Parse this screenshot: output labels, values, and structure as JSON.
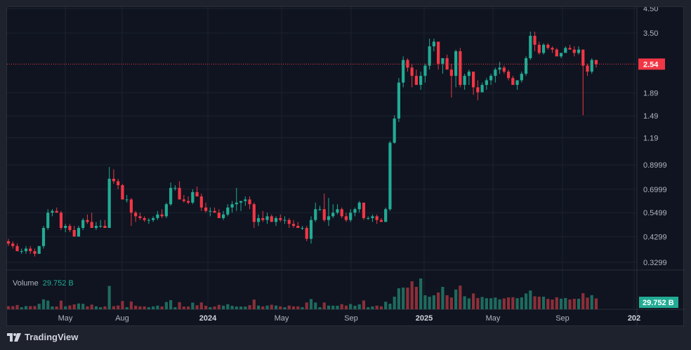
{
  "chart_data": {
    "type": "candlestick",
    "title": "",
    "interval": "weekly",
    "scale": "log",
    "y_ticks": [
      4.5,
      3.5,
      1.89,
      1.49,
      1.19,
      0.8999,
      0.6999,
      0.5499,
      0.4299,
      0.3299
    ],
    "y_tick_labels": [
      "4.50",
      "3.50",
      "1.89",
      "1.49",
      "1.19",
      "0.8999",
      "0.6999",
      "0.5499",
      "0.4299",
      "0.3299"
    ],
    "x_tick_labels": [
      "May",
      "Aug",
      "2024",
      "May",
      "Sep",
      "2025",
      "May",
      "Sep",
      "202"
    ],
    "last_price": 2.54,
    "last_price_label": "2.54",
    "colors": {
      "up": "#22ab94",
      "down": "#f23645",
      "up_volume": "#1e6b5e",
      "down_volume": "#8c2f39",
      "background": "#0f1420",
      "grid": "#1c2230"
    },
    "candles": [
      [
        0.41,
        0.42,
        0.39,
        0.4
      ],
      [
        0.4,
        0.41,
        0.38,
        0.39
      ],
      [
        0.39,
        0.4,
        0.37,
        0.37
      ],
      [
        0.37,
        0.38,
        0.36,
        0.37
      ],
      [
        0.37,
        0.39,
        0.36,
        0.38
      ],
      [
        0.38,
        0.39,
        0.36,
        0.37
      ],
      [
        0.37,
        0.38,
        0.35,
        0.36
      ],
      [
        0.36,
        0.39,
        0.36,
        0.39
      ],
      [
        0.39,
        0.48,
        0.38,
        0.47
      ],
      [
        0.47,
        0.57,
        0.46,
        0.55
      ],
      [
        0.55,
        0.57,
        0.53,
        0.56
      ],
      [
        0.56,
        0.58,
        0.55,
        0.55
      ],
      [
        0.55,
        0.56,
        0.46,
        0.47
      ],
      [
        0.47,
        0.49,
        0.45,
        0.48
      ],
      [
        0.48,
        0.49,
        0.45,
        0.46
      ],
      [
        0.46,
        0.48,
        0.44,
        0.43
      ],
      [
        0.43,
        0.48,
        0.43,
        0.47
      ],
      [
        0.47,
        0.52,
        0.46,
        0.51
      ],
      [
        0.51,
        0.54,
        0.49,
        0.5
      ],
      [
        0.5,
        0.55,
        0.48,
        0.47
      ],
      [
        0.47,
        0.5,
        0.46,
        0.48
      ],
      [
        0.48,
        0.51,
        0.47,
        0.48
      ],
      [
        0.48,
        0.51,
        0.47,
        0.47
      ],
      [
        0.47,
        0.88,
        0.47,
        0.78
      ],
      [
        0.78,
        0.86,
        0.74,
        0.76
      ],
      [
        0.76,
        0.78,
        0.7,
        0.73
      ],
      [
        0.73,
        0.74,
        0.63,
        0.63
      ],
      [
        0.63,
        0.66,
        0.61,
        0.63
      ],
      [
        0.63,
        0.64,
        0.48,
        0.55
      ],
      [
        0.55,
        0.56,
        0.5,
        0.53
      ],
      [
        0.53,
        0.55,
        0.51,
        0.52
      ],
      [
        0.52,
        0.53,
        0.5,
        0.51
      ],
      [
        0.51,
        0.52,
        0.49,
        0.51
      ],
      [
        0.51,
        0.53,
        0.5,
        0.52
      ],
      [
        0.52,
        0.56,
        0.51,
        0.54
      ],
      [
        0.54,
        0.57,
        0.52,
        0.53
      ],
      [
        0.53,
        0.61,
        0.52,
        0.6
      ],
      [
        0.6,
        0.75,
        0.59,
        0.71
      ],
      [
        0.71,
        0.73,
        0.69,
        0.71
      ],
      [
        0.71,
        0.76,
        0.63,
        0.63
      ],
      [
        0.63,
        0.66,
        0.61,
        0.62
      ],
      [
        0.62,
        0.65,
        0.6,
        0.61
      ],
      [
        0.61,
        0.7,
        0.6,
        0.68
      ],
      [
        0.68,
        0.72,
        0.66,
        0.65
      ],
      [
        0.65,
        0.67,
        0.56,
        0.58
      ],
      [
        0.58,
        0.61,
        0.55,
        0.56
      ],
      [
        0.56,
        0.58,
        0.53,
        0.56
      ],
      [
        0.56,
        0.58,
        0.55,
        0.55
      ],
      [
        0.55,
        0.57,
        0.52,
        0.52
      ],
      [
        0.52,
        0.56,
        0.51,
        0.54
      ],
      [
        0.54,
        0.6,
        0.53,
        0.58
      ],
      [
        0.58,
        0.62,
        0.55,
        0.6
      ],
      [
        0.6,
        0.71,
        0.56,
        0.61
      ],
      [
        0.61,
        0.62,
        0.56,
        0.62
      ],
      [
        0.62,
        0.65,
        0.59,
        0.63
      ],
      [
        0.63,
        0.65,
        0.57,
        0.6
      ],
      [
        0.6,
        0.61,
        0.47,
        0.5
      ],
      [
        0.5,
        0.54,
        0.48,
        0.52
      ],
      [
        0.52,
        0.56,
        0.5,
        0.51
      ],
      [
        0.51,
        0.55,
        0.49,
        0.53
      ],
      [
        0.53,
        0.54,
        0.5,
        0.5
      ],
      [
        0.5,
        0.53,
        0.48,
        0.52
      ],
      [
        0.52,
        0.54,
        0.5,
        0.51
      ],
      [
        0.51,
        0.53,
        0.49,
        0.51
      ],
      [
        0.51,
        0.52,
        0.47,
        0.49
      ],
      [
        0.49,
        0.51,
        0.47,
        0.48
      ],
      [
        0.48,
        0.5,
        0.47,
        0.47
      ],
      [
        0.47,
        0.48,
        0.46,
        0.47
      ],
      [
        0.47,
        0.48,
        0.41,
        0.42
      ],
      [
        0.42,
        0.53,
        0.4,
        0.51
      ],
      [
        0.51,
        0.61,
        0.5,
        0.57
      ],
      [
        0.57,
        0.59,
        0.56,
        0.57
      ],
      [
        0.57,
        0.67,
        0.5,
        0.51
      ],
      [
        0.51,
        0.64,
        0.48,
        0.53
      ],
      [
        0.53,
        0.6,
        0.52,
        0.55
      ],
      [
        0.55,
        0.6,
        0.54,
        0.57
      ],
      [
        0.57,
        0.58,
        0.52,
        0.53
      ],
      [
        0.53,
        0.55,
        0.5,
        0.51
      ],
      [
        0.51,
        0.57,
        0.5,
        0.55
      ],
      [
        0.55,
        0.58,
        0.53,
        0.57
      ],
      [
        0.57,
        0.62,
        0.55,
        0.61
      ],
      [
        0.61,
        0.61,
        0.51,
        0.52
      ],
      [
        0.52,
        0.53,
        0.51,
        0.52
      ],
      [
        0.52,
        0.54,
        0.5,
        0.53
      ],
      [
        0.53,
        0.54,
        0.49,
        0.51
      ],
      [
        0.51,
        0.52,
        0.5,
        0.5
      ],
      [
        0.5,
        0.58,
        0.5,
        0.57
      ],
      [
        0.57,
        1.15,
        0.56,
        1.13
      ],
      [
        1.13,
        1.5,
        1.12,
        1.45
      ],
      [
        1.45,
        2.2,
        1.4,
        2.1
      ],
      [
        2.1,
        2.75,
        2.0,
        2.65
      ],
      [
        2.65,
        2.7,
        2.35,
        2.45
      ],
      [
        2.45,
        2.55,
        2.0,
        2.25
      ],
      [
        2.25,
        2.4,
        2.05,
        2.05
      ],
      [
        2.05,
        2.35,
        1.95,
        2.25
      ],
      [
        2.25,
        2.55,
        2.1,
        2.5
      ],
      [
        2.5,
        3.3,
        2.4,
        3.05
      ],
      [
        3.05,
        3.3,
        2.9,
        3.2
      ],
      [
        3.2,
        3.05,
        2.4,
        2.55
      ],
      [
        2.55,
        2.7,
        2.3,
        2.7
      ],
      [
        2.7,
        2.8,
        2.45,
        2.4
      ],
      [
        2.4,
        2.55,
        1.8,
        2.25
      ],
      [
        2.25,
        2.95,
        2.0,
        2.9
      ],
      [
        2.9,
        3.0,
        2.0,
        2.05
      ],
      [
        2.05,
        2.3,
        1.95,
        2.25
      ],
      [
        2.25,
        2.4,
        2.05,
        2.35
      ],
      [
        2.35,
        2.25,
        1.85,
        2.0
      ],
      [
        2.0,
        2.15,
        1.75,
        1.9
      ],
      [
        1.9,
        2.1,
        1.9,
        2.05
      ],
      [
        2.05,
        2.2,
        1.95,
        2.15
      ],
      [
        2.15,
        2.3,
        2.05,
        2.25
      ],
      [
        2.25,
        2.45,
        2.1,
        2.4
      ],
      [
        2.4,
        2.6,
        2.3,
        2.45
      ],
      [
        2.45,
        2.5,
        2.3,
        2.35
      ],
      [
        2.35,
        2.4,
        2.15,
        2.2
      ],
      [
        2.2,
        2.25,
        2.05,
        2.05
      ],
      [
        2.05,
        2.15,
        1.95,
        2.15
      ],
      [
        2.15,
        2.35,
        2.1,
        2.3
      ],
      [
        2.3,
        2.75,
        2.25,
        2.7
      ],
      [
        2.7,
        3.55,
        2.65,
        3.4
      ],
      [
        3.4,
        3.55,
        2.9,
        3.1
      ],
      [
        3.1,
        3.2,
        2.8,
        2.85
      ],
      [
        2.85,
        3.15,
        2.8,
        3.1
      ],
      [
        3.1,
        3.15,
        2.95,
        3.0
      ],
      [
        3.0,
        3.05,
        2.85,
        2.95
      ],
      [
        2.95,
        3.0,
        2.75,
        2.75
      ],
      [
        2.75,
        2.85,
        2.7,
        2.85
      ],
      [
        2.85,
        3.05,
        2.85,
        3.0
      ],
      [
        3.0,
        3.1,
        2.95,
        2.95
      ],
      [
        2.95,
        3.05,
        2.75,
        2.85
      ],
      [
        2.85,
        3.05,
        2.8,
        2.95
      ],
      [
        2.95,
        2.95,
        1.5,
        2.5
      ],
      [
        2.5,
        2.55,
        2.25,
        2.35
      ],
      [
        2.35,
        2.7,
        2.3,
        2.65
      ],
      [
        2.65,
        2.65,
        2.45,
        2.54
      ]
    ],
    "volume": {
      "label": "Volume",
      "last_value_label": "29.752 B"
    }
  },
  "price_axis": {
    "last_price_label": "2.54",
    "volume_badge": "29.752 B"
  },
  "volume_legend": {
    "label": "Volume",
    "value": "29.752 B"
  },
  "footer": {
    "brand": "TradingView"
  }
}
